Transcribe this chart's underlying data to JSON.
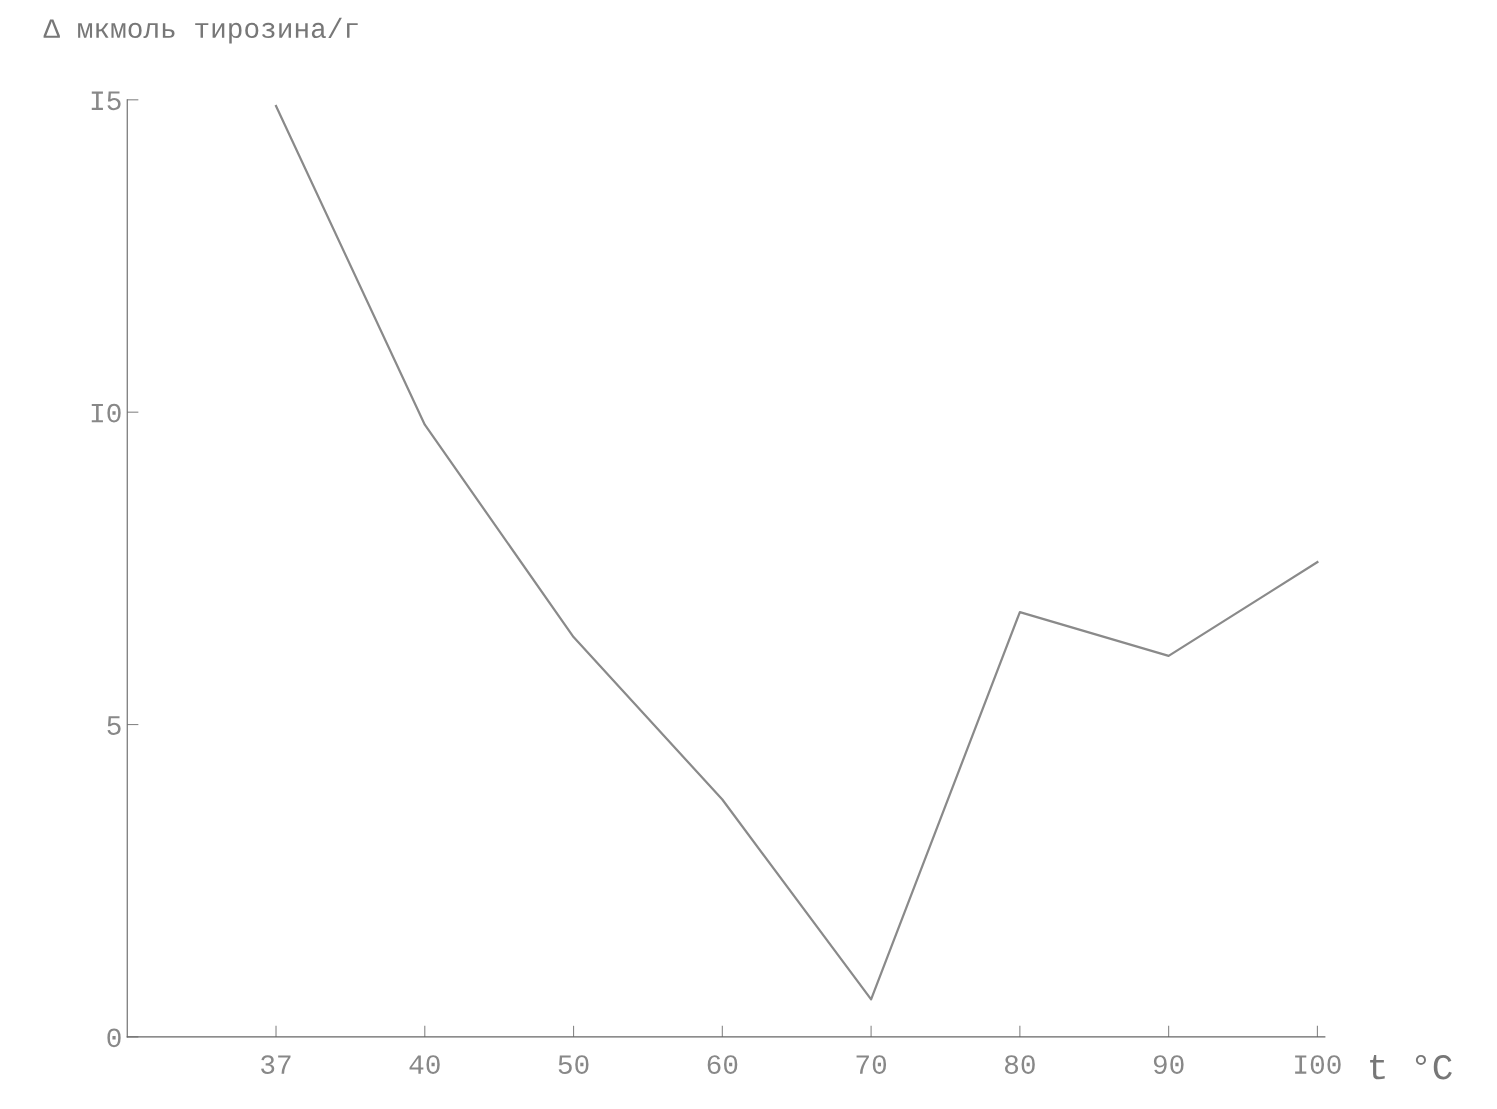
{
  "chart_data": {
    "type": "line",
    "ylabel": "Δ мкмоль тирозина/г",
    "xlabel": "t °C",
    "categories": [
      "37",
      "40",
      "50",
      "60",
      "70",
      "80",
      "90",
      "I00"
    ],
    "series": [
      {
        "color": "#8a8a8a",
        "values": [
          14.9,
          9.8,
          6.4,
          3.8,
          0.6,
          6.8,
          6.1,
          7.6
        ]
      }
    ],
    "ylim": [
      0,
      15
    ],
    "yticks": [
      0,
      5,
      {
        "value": 10,
        "label": "I0"
      },
      {
        "value": 15,
        "label": "I5"
      }
    ],
    "grid": false,
    "marker": "none",
    "line_style": "solid"
  }
}
